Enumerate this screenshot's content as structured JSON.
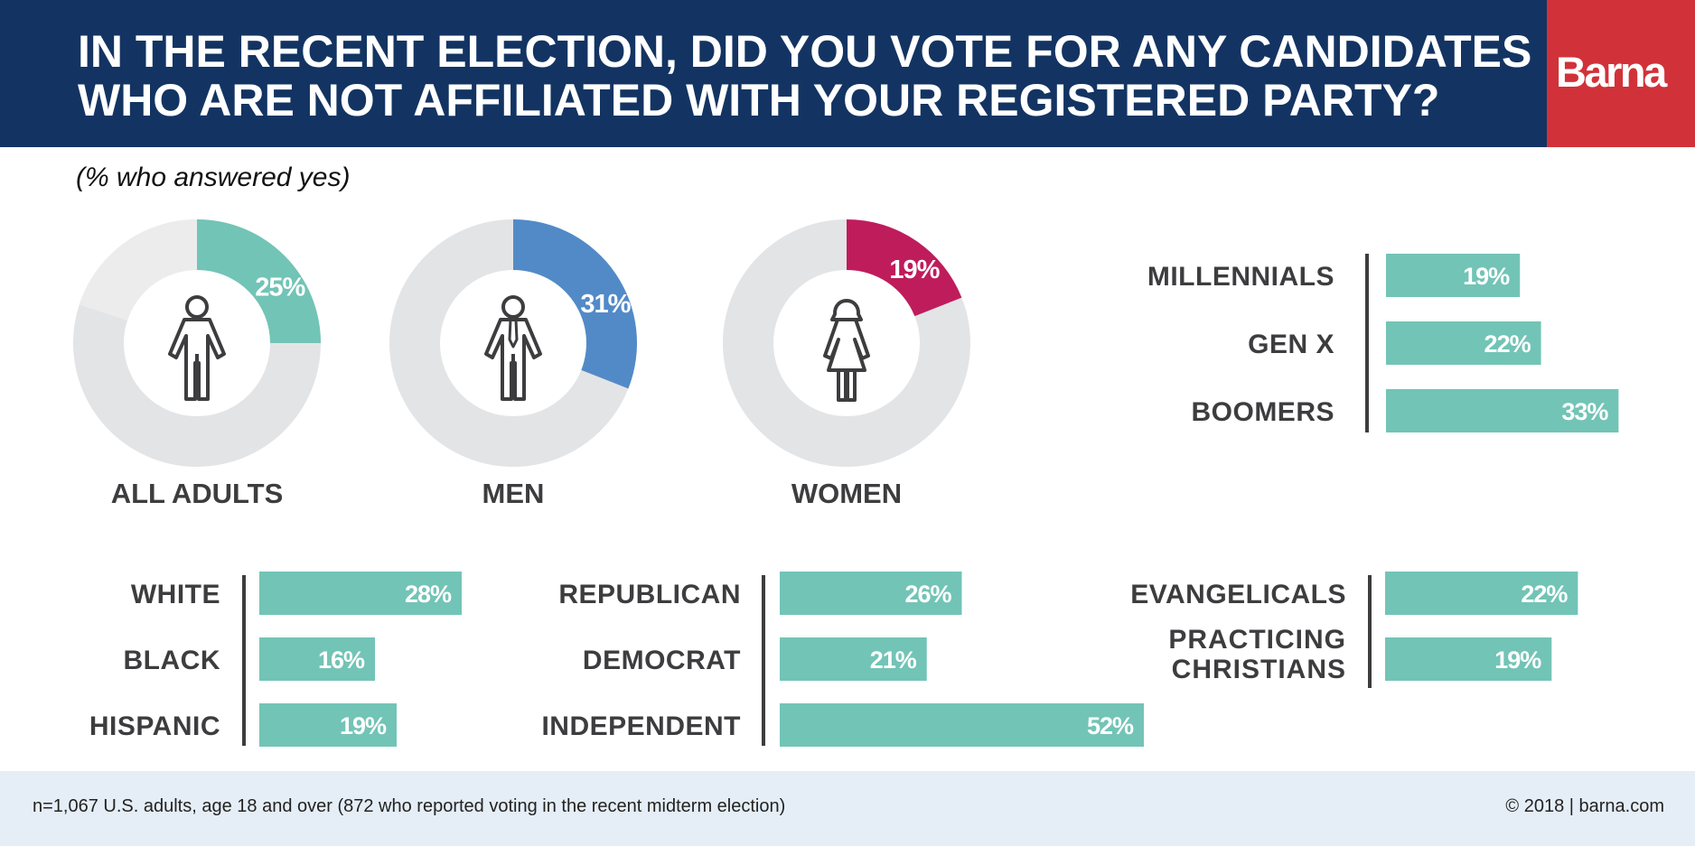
{
  "header": {
    "title_line1": "IN THE RECENT ELECTION, DID YOU VOTE FOR ANY CANDIDATES",
    "title_line2": "WHO ARE NOT AFFILIATED WITH YOUR REGISTERED PARTY?",
    "logo": "Barna"
  },
  "subtitle": "(% who answered yes)",
  "footer": {
    "note": "n=1,067 U.S. adults, age 18 and over (872 who reported voting in the recent midterm election)",
    "copyright": "© 2018 | barna.com"
  },
  "colors": {
    "header_bg": "#133462",
    "logo_bg": "#d13239",
    "bar": "#72c4b6",
    "donut_track": "#e3e4e6",
    "all_adults": "#72c4b6",
    "men": "#528ac8",
    "women": "#bf1c5c",
    "label": "#3d3d3f",
    "footer_bg": "#e5eef6"
  },
  "chart_data": [
    {
      "type": "pie",
      "title": "Gender",
      "donuts": [
        {
          "label": "ALL ADULTS",
          "value": 25,
          "value_label": "25%",
          "color": "#72c4b6",
          "icon": "person-icon"
        },
        {
          "label": "MEN",
          "value": 31,
          "value_label": "31%",
          "color": "#528ac8",
          "icon": "man-icon"
        },
        {
          "label": "WOMEN",
          "value": 19,
          "value_label": "19%",
          "color": "#bf1c5c",
          "icon": "woman-icon"
        }
      ]
    },
    {
      "type": "bar",
      "title": "Generation",
      "categories": [
        "MILLENNIALS",
        "GEN X",
        "BOOMERS"
      ],
      "values": [
        19,
        22,
        33
      ],
      "value_labels": [
        "19%",
        "22%",
        "33%"
      ]
    },
    {
      "type": "bar",
      "title": "Ethnicity",
      "categories": [
        "WHITE",
        "BLACK",
        "HISPANIC"
      ],
      "values": [
        28,
        16,
        19
      ],
      "value_labels": [
        "28%",
        "16%",
        "19%"
      ]
    },
    {
      "type": "bar",
      "title": "Party",
      "categories": [
        "REPUBLICAN",
        "DEMOCRAT",
        "INDEPENDENT"
      ],
      "values": [
        26,
        21,
        52
      ],
      "value_labels": [
        "26%",
        "21%",
        "52%"
      ]
    },
    {
      "type": "bar",
      "title": "Faith",
      "categories": [
        "EVANGELICALS",
        "PRACTICING CHRISTIANS"
      ],
      "values": [
        22,
        19
      ],
      "value_labels": [
        "22%",
        "19%"
      ]
    }
  ]
}
